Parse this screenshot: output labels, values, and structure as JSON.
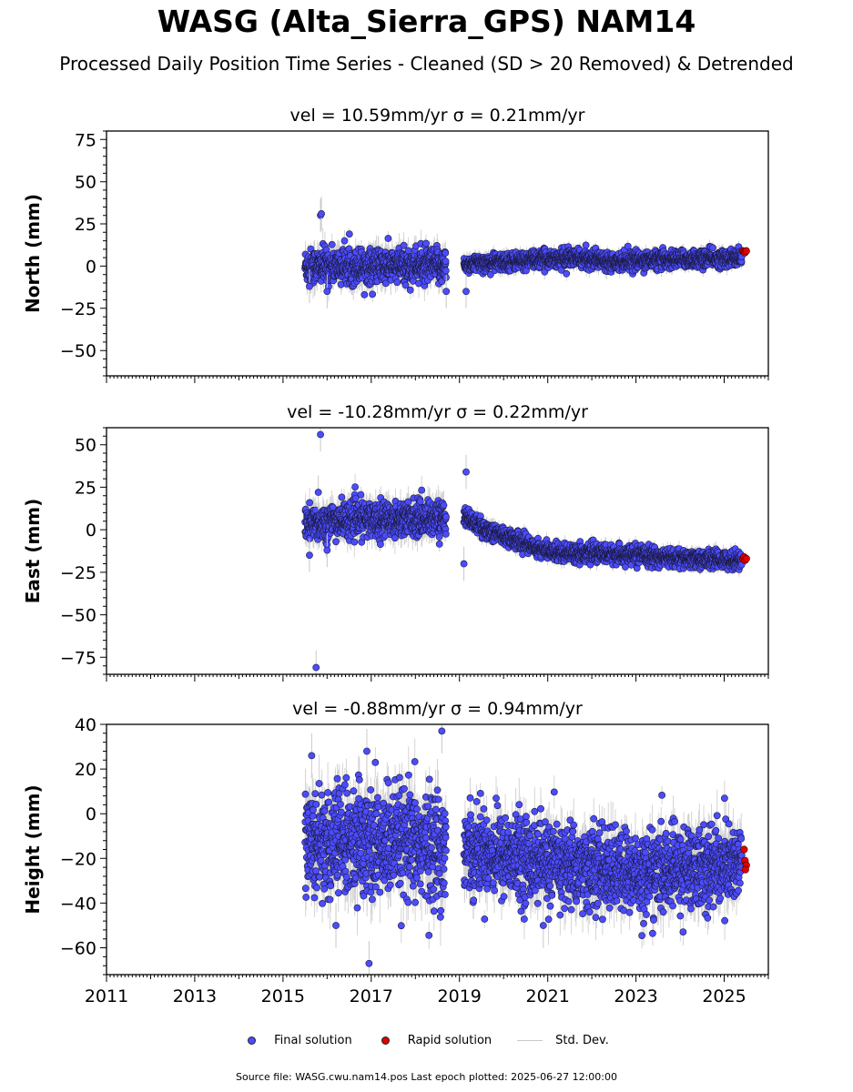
{
  "title": "WASG (Alta_Sierra_GPS) NAM14",
  "subtitle": "Processed Daily Position Time Series - Cleaned (SD > 20 Removed) & Detrended",
  "legend": {
    "final": "Final solution",
    "rapid": "Rapid solution",
    "stddev": "Std. Dev.",
    "placement": "bottom-center",
    "colors": {
      "final": "#4c4cff",
      "rapid": "#e00000",
      "stddev": "#c8c8c8"
    }
  },
  "source_note": "Source file: WASG.cwu.nam14.pos  Last epoch plotted: 2025-06-27 12:00:00",
  "chart_data": [
    {
      "type": "scatter",
      "vel_text": "vel = 10.59mm/yr",
      "sigma_text": "σ = 0.21mm/yr",
      "ylabel": "North (mm)",
      "xlim": [
        2011,
        2026
      ],
      "ylim": [
        -65,
        80
      ],
      "yticks": [
        75,
        50,
        25,
        0,
        -25,
        -50
      ],
      "ytick_labels": [
        "75",
        "50",
        "25",
        "0",
        "−25",
        "−50"
      ],
      "final_segments": [
        {
          "x_start": 2015.5,
          "x_end": 2018.7,
          "level": [
            [
              2015.5,
              0
            ],
            [
              2018.7,
              0
            ]
          ],
          "spread": 5,
          "err": 8
        },
        {
          "x_start": 2019.1,
          "x_end": 2025.4,
          "level": [
            [
              2019.1,
              1
            ],
            [
              2021.5,
              5
            ],
            [
              2022.5,
              3
            ],
            [
              2025.4,
              5
            ]
          ],
          "spread": 2.5,
          "err": 4
        }
      ],
      "outliers": [
        [
          2015.85,
          30
        ],
        [
          2015.87,
          31
        ],
        [
          2015.6,
          -12
        ],
        [
          2016.0,
          -15
        ],
        [
          2018.7,
          -15
        ],
        [
          2019.15,
          -15
        ]
      ],
      "rapid_points": [
        [
          2025.42,
          9
        ],
        [
          2025.45,
          8.5
        ],
        [
          2025.47,
          8
        ],
        [
          2025.5,
          9
        ]
      ]
    },
    {
      "type": "scatter",
      "vel_text": "vel = -10.28mm/yr",
      "sigma_text": "σ = 0.22mm/yr",
      "ylabel": "East (mm)",
      "xlim": [
        2011,
        2026
      ],
      "ylim": [
        -85,
        60
      ],
      "yticks": [
        50,
        25,
        0,
        -25,
        -50,
        -75
      ],
      "ytick_labels": [
        "50",
        "25",
        "0",
        "−25",
        "−50",
        "−75"
      ],
      "final_segments": [
        {
          "x_start": 2015.5,
          "x_end": 2018.7,
          "level": [
            [
              2015.5,
              3
            ],
            [
              2016.5,
              6
            ],
            [
              2018.7,
              7
            ]
          ],
          "spread": 5,
          "err": 8
        },
        {
          "x_start": 2019.1,
          "x_end": 2025.4,
          "level": [
            [
              2019.1,
              8
            ],
            [
              2019.6,
              0
            ],
            [
              2020.5,
              -8
            ],
            [
              2021.0,
              -13
            ],
            [
              2022.0,
              -14
            ],
            [
              2023.0,
              -15
            ],
            [
              2024.0,
              -17
            ],
            [
              2025.4,
              -18
            ]
          ],
          "spread": 2.5,
          "err": 4
        }
      ],
      "outliers": [
        [
          2015.85,
          56
        ],
        [
          2015.75,
          -81
        ],
        [
          2015.8,
          22
        ],
        [
          2015.6,
          -15
        ],
        [
          2019.15,
          34
        ],
        [
          2019.1,
          -20
        ],
        [
          2016.0,
          -12
        ]
      ],
      "rapid_points": [
        [
          2025.42,
          -17
        ],
        [
          2025.45,
          -16
        ],
        [
          2025.47,
          -18
        ],
        [
          2025.5,
          -17
        ]
      ]
    },
    {
      "type": "scatter",
      "vel_text": "vel = -0.88mm/yr",
      "sigma_text": "σ = 0.94mm/yr",
      "ylabel": "Height (mm)",
      "xlim": [
        2011,
        2026
      ],
      "ylim": [
        -72,
        40
      ],
      "yticks": [
        40,
        20,
        0,
        -20,
        -40,
        -60
      ],
      "ytick_labels": [
        "40",
        "20",
        "0",
        "−20",
        "−40",
        "−60"
      ],
      "xticks": [
        2011,
        2013,
        2015,
        2017,
        2019,
        2021,
        2023,
        2025
      ],
      "xtick_labels": [
        "2011",
        "2013",
        "2015",
        "2017",
        "2019",
        "2021",
        "2023",
        "2025"
      ],
      "final_segments": [
        {
          "x_start": 2015.5,
          "x_end": 2018.7,
          "level": [
            [
              2015.5,
              -12
            ],
            [
              2018.7,
              -15
            ]
          ],
          "spread": 12,
          "err": 12
        },
        {
          "x_start": 2019.1,
          "x_end": 2025.4,
          "level": [
            [
              2019.1,
              -15
            ],
            [
              2021.0,
              -22
            ],
            [
              2023.0,
              -27
            ],
            [
              2025.4,
              -22
            ]
          ],
          "spread": 9,
          "err": 10
        }
      ],
      "outliers": [
        [
          2016.95,
          -67
        ],
        [
          2018.6,
          37
        ],
        [
          2016.9,
          28
        ],
        [
          2015.65,
          26
        ],
        [
          2016.2,
          -50
        ],
        [
          2020.9,
          -50
        ]
      ],
      "rapid_points": [
        [
          2025.45,
          -16
        ],
        [
          2025.47,
          -21
        ],
        [
          2025.5,
          -23
        ],
        [
          2025.48,
          -25
        ]
      ]
    }
  ]
}
